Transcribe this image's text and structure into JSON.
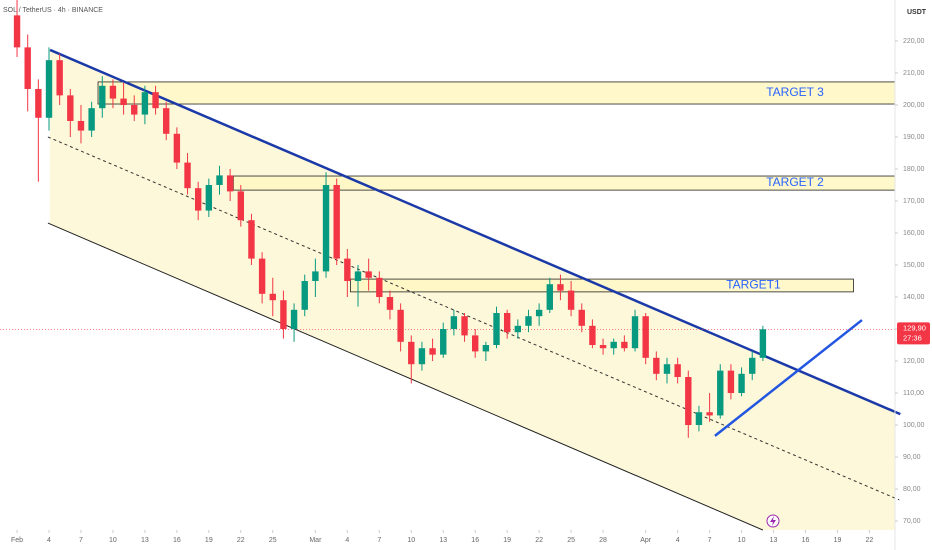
{
  "chart_data": {
    "type": "candlestick",
    "title": "SOL / TetherUS · 4h · BINANCE",
    "y_axis_label": "USDT",
    "x": [
      0,
      1,
      2,
      3,
      4,
      5,
      6,
      7,
      8,
      9,
      10,
      11,
      12,
      13,
      14,
      15,
      16,
      17,
      18,
      19,
      20,
      21,
      22,
      23,
      24,
      25,
      26,
      27,
      28,
      29,
      30,
      31,
      32,
      33,
      34,
      35,
      36,
      37,
      38,
      39,
      40,
      41,
      42,
      43,
      44,
      45,
      46,
      47,
      48,
      49,
      50,
      51,
      52,
      53,
      54,
      55,
      56,
      57,
      58,
      59,
      60,
      61,
      62,
      63,
      64,
      65,
      66,
      67,
      68,
      69,
      70
    ],
    "open": [
      228,
      218,
      205,
      196,
      214,
      203,
      195,
      192,
      199,
      206,
      202,
      200,
      197,
      204,
      199,
      191,
      182,
      174,
      167,
      175,
      178,
      173,
      164,
      152,
      141,
      139,
      130,
      136,
      145,
      148,
      175,
      152,
      145,
      148,
      146,
      140,
      136,
      126,
      119,
      124,
      122,
      130,
      134,
      128,
      123,
      125,
      135,
      129,
      131,
      134,
      136,
      144,
      142,
      136,
      131,
      125,
      124,
      126,
      124,
      134,
      121,
      116,
      119,
      115,
      100,
      104,
      103,
      117,
      110,
      116,
      121
    ],
    "high": [
      234,
      222,
      208,
      218,
      216,
      205,
      200,
      201,
      209,
      208,
      207,
      203,
      206,
      206,
      201,
      193,
      185,
      176,
      177,
      181,
      180,
      175,
      166,
      154,
      146,
      142,
      138,
      147,
      152,
      179,
      177,
      155,
      150,
      152,
      148,
      142,
      138,
      128,
      126,
      127,
      132,
      136,
      135,
      130,
      126,
      137,
      136,
      133,
      136,
      138,
      146,
      147,
      145,
      138,
      133,
      127,
      127,
      128,
      136,
      135,
      123,
      121,
      121,
      117,
      106,
      110,
      119,
      119,
      118,
      123,
      131
    ],
    "low": [
      215,
      198,
      176,
      192,
      200,
      190,
      188,
      190,
      196,
      199,
      197,
      195,
      194,
      197,
      189,
      180,
      172,
      164,
      165,
      172,
      170,
      162,
      150,
      138,
      134,
      127,
      126,
      134,
      140,
      146,
      150,
      140,
      137,
      142,
      138,
      133,
      123,
      113,
      117,
      120,
      121,
      128,
      126,
      121,
      120,
      124,
      127,
      127,
      129,
      131,
      135,
      139,
      134,
      129,
      124,
      122,
      122,
      123,
      123,
      119,
      114,
      113,
      113,
      96,
      98,
      101,
      102,
      108,
      109,
      114,
      120
    ],
    "close": [
      218,
      205,
      196,
      214,
      203,
      195,
      192,
      199,
      206,
      202,
      200,
      197,
      204,
      199,
      191,
      182,
      174,
      167,
      175,
      178,
      173,
      164,
      152,
      141,
      139,
      130,
      136,
      145,
      148,
      175,
      152,
      145,
      148,
      146,
      140,
      136,
      126,
      119,
      124,
      122,
      130,
      134,
      128,
      123,
      125,
      135,
      129,
      131,
      134,
      136,
      144,
      142,
      136,
      131,
      125,
      124,
      126,
      124,
      134,
      121,
      116,
      119,
      115,
      100,
      104,
      103,
      117,
      110,
      116,
      121,
      129.9
    ],
    "up_color": "#089981",
    "down_color": "#f23645",
    "last_price": {
      "value": 129.9,
      "label": "129,90"
    },
    "countdown": "27:36",
    "xlim": [
      -1.6,
      82.4
    ],
    "ylim": [
      67.2,
      232.8
    ],
    "xticks": [
      {
        "value": 0,
        "label": "Feb"
      },
      {
        "value": 3,
        "label": "4"
      },
      {
        "value": 6,
        "label": "7"
      },
      {
        "value": 9,
        "label": "10"
      },
      {
        "value": 12,
        "label": "13"
      },
      {
        "value": 15,
        "label": "16"
      },
      {
        "value": 18,
        "label": "19"
      },
      {
        "value": 21,
        "label": "22"
      },
      {
        "value": 24,
        "label": "25"
      },
      {
        "value": 28,
        "label": "Mar"
      },
      {
        "value": 31,
        "label": "4"
      },
      {
        "value": 34,
        "label": "7"
      },
      {
        "value": 37,
        "label": "10"
      },
      {
        "value": 40,
        "label": "13"
      },
      {
        "value": 43,
        "label": "16"
      },
      {
        "value": 46,
        "label": "19"
      },
      {
        "value": 49,
        "label": "22"
      },
      {
        "value": 52,
        "label": "25"
      },
      {
        "value": 55,
        "label": "28"
      },
      {
        "value": 59,
        "label": "Apr"
      },
      {
        "value": 62,
        "label": "4"
      },
      {
        "value": 65,
        "label": "7"
      },
      {
        "value": 68,
        "label": "10"
      },
      {
        "value": 71,
        "label": "13"
      },
      {
        "value": 74,
        "label": "16"
      },
      {
        "value": 77,
        "label": "19"
      },
      {
        "value": 80,
        "label": "22"
      }
    ],
    "yticks": [
      {
        "value": 70,
        "label": "70,00"
      },
      {
        "value": 80,
        "label": "80,00"
      },
      {
        "value": 90,
        "label": "90,00"
      },
      {
        "value": 100,
        "label": "100,00"
      },
      {
        "value": 110,
        "label": "110,00"
      },
      {
        "value": 120,
        "label": "120,00"
      },
      {
        "value": 130,
        "label": "130,00"
      },
      {
        "value": 140,
        "label": "140,00"
      },
      {
        "value": 150,
        "label": "150,00"
      },
      {
        "value": 160,
        "label": "160,00"
      },
      {
        "value": 170,
        "label": "170,00"
      },
      {
        "value": 180,
        "label": "180,00"
      },
      {
        "value": 190,
        "label": "190,00"
      },
      {
        "value": 200,
        "label": "200,00"
      },
      {
        "value": 210,
        "label": "210,00"
      },
      {
        "value": 220,
        "label": "220,00"
      }
    ],
    "zones": [
      {
        "label": "TARGET 3",
        "from": 200.3,
        "to": 207.2,
        "start": 7.6,
        "end": 82.4
      },
      {
        "label": "TARGET 2",
        "from": 173.4,
        "to": 177.8,
        "start": 20.3,
        "end": 82.4
      },
      {
        "label": "TARGET1",
        "from": 141.6,
        "to": 145.6,
        "start": 31.3,
        "end": 78.5
      }
    ],
    "zone_color": "#fff7c2",
    "label_color": "#2962ff",
    "channel_color": "#fdf8d9",
    "trendlines": [
      {
        "x": [
          3.1,
          82.9
        ],
        "y": [
          217.2,
          103.4
        ],
        "color": "#1b3aa8",
        "width": 2.5,
        "dash": false
      },
      {
        "x": [
          2.9,
          70.0
        ],
        "y": [
          163.1,
          67.2
        ],
        "color": "#222222",
        "width": 1,
        "dash": false
      },
      {
        "x": [
          2.9,
          82.8
        ],
        "y": [
          190.0,
          76.6
        ],
        "color": "#333333",
        "width": 1,
        "dash": true
      },
      {
        "x": [
          65.5,
          79.3
        ],
        "y": [
          96.6,
          132.8
        ],
        "color": "#2255e0",
        "width": 2.5,
        "dash": false
      }
    ]
  }
}
